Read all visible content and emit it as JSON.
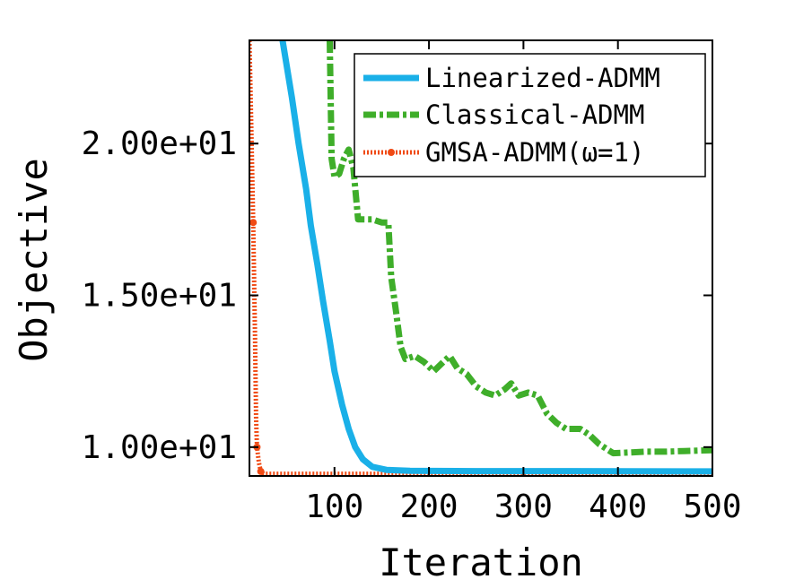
{
  "chart_data": {
    "type": "line",
    "title": "",
    "xlabel": "Iteration",
    "ylabel": "Objective",
    "xlim": [
      10,
      500
    ],
    "ylim": [
      9.05,
      23.4
    ],
    "xticks": [
      100,
      200,
      300,
      400,
      500
    ],
    "xtick_labels": [
      "100",
      "200",
      "300",
      "400",
      "500"
    ],
    "yticks": [
      10,
      15,
      20
    ],
    "ytick_labels": [
      "1.00e+01",
      "1.50e+01",
      "2.00e+01"
    ],
    "grid": false,
    "legend_position": "top-right",
    "series": [
      {
        "name": "Linearized-ADMM",
        "color": "#1ab0e8",
        "style": "solid",
        "points": [
          [
            45,
            23.4
          ],
          [
            55,
            21.5
          ],
          [
            62,
            20.0
          ],
          [
            70,
            18.5
          ],
          [
            75,
            17.3
          ],
          [
            82,
            16.0
          ],
          [
            88,
            14.8
          ],
          [
            95,
            13.5
          ],
          [
            100,
            12.5
          ],
          [
            108,
            11.4
          ],
          [
            115,
            10.6
          ],
          [
            122,
            10.0
          ],
          [
            130,
            9.6
          ],
          [
            140,
            9.35
          ],
          [
            155,
            9.25
          ],
          [
            180,
            9.22
          ],
          [
            250,
            9.21
          ],
          [
            350,
            9.21
          ],
          [
            500,
            9.2
          ]
        ]
      },
      {
        "name": "Classical-ADMM",
        "color": "#3fae2a",
        "style": "dash-dot",
        "points": [
          [
            95,
            23.4
          ],
          [
            97,
            19.5
          ],
          [
            100,
            18.9
          ],
          [
            105,
            19.0
          ],
          [
            110,
            19.5
          ],
          [
            115,
            19.8
          ],
          [
            120,
            19.2
          ],
          [
            125,
            17.5
          ],
          [
            130,
            17.5
          ],
          [
            140,
            17.5
          ],
          [
            150,
            17.4
          ],
          [
            157,
            17.4
          ],
          [
            160,
            15.6
          ],
          [
            165,
            14.5
          ],
          [
            170,
            13.3
          ],
          [
            175,
            12.9
          ],
          [
            185,
            13.0
          ],
          [
            195,
            12.8
          ],
          [
            205,
            12.5
          ],
          [
            215,
            12.8
          ],
          [
            222,
            13.0
          ],
          [
            230,
            12.6
          ],
          [
            240,
            12.4
          ],
          [
            250,
            12.0
          ],
          [
            260,
            11.8
          ],
          [
            270,
            11.7
          ],
          [
            280,
            11.9
          ],
          [
            287,
            12.1
          ],
          [
            295,
            11.7
          ],
          [
            305,
            11.8
          ],
          [
            315,
            11.7
          ],
          [
            325,
            11.1
          ],
          [
            335,
            10.8
          ],
          [
            345,
            10.6
          ],
          [
            360,
            10.6
          ],
          [
            370,
            10.4
          ],
          [
            380,
            10.1
          ],
          [
            395,
            9.8
          ],
          [
            410,
            9.82
          ],
          [
            430,
            9.85
          ],
          [
            450,
            9.85
          ],
          [
            470,
            9.87
          ],
          [
            500,
            9.9
          ]
        ]
      },
      {
        "name": "GMSA-ADMM(ω=1)",
        "color": "#f04a14",
        "style": "dotted",
        "points": [
          [
            10,
            23.4
          ],
          [
            12,
            20.5
          ],
          [
            14,
            17.4
          ],
          [
            16,
            13.5
          ],
          [
            17,
            11.0
          ],
          [
            18,
            10.0
          ],
          [
            20,
            9.5
          ],
          [
            22,
            9.2
          ],
          [
            25,
            9.12
          ],
          [
            40,
            9.12
          ],
          [
            100,
            9.12
          ],
          [
            200,
            9.12
          ],
          [
            300,
            9.12
          ],
          [
            400,
            9.12
          ],
          [
            500,
            9.12
          ]
        ]
      }
    ]
  }
}
